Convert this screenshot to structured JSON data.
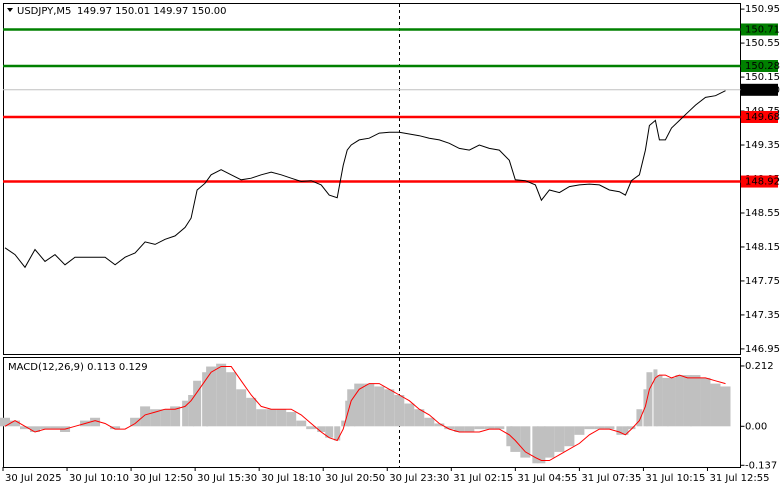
{
  "chart_data": [
    {
      "type": "line",
      "title": "USDJPY,M5",
      "subtitle": "149.97 150.01 149.97 150.00",
      "color": "#000000",
      "x": [
        1,
        6,
        11,
        16,
        21,
        26,
        31,
        36,
        41,
        46,
        51,
        56,
        61,
        66,
        71,
        76,
        81,
        86,
        91,
        94,
        97,
        101,
        104,
        109,
        114,
        119,
        124,
        129,
        134,
        139,
        144,
        149,
        154,
        159,
        163,
        167,
        170,
        172,
        174,
        178,
        183,
        188,
        193,
        198,
        203,
        208,
        213,
        218,
        223,
        228,
        233,
        238,
        243,
        248,
        253,
        256,
        261,
        266,
        269,
        273,
        278,
        283,
        288,
        293,
        298,
        303,
        308,
        311,
        314,
        318,
        321,
        323,
        326,
        328,
        331,
        334,
        338,
        342,
        346,
        351,
        356,
        361
      ],
      "values": [
        148.14,
        148.06,
        147.91,
        148.12,
        147.98,
        148.06,
        147.94,
        148.03,
        148.03,
        148.03,
        148.03,
        147.94,
        148.03,
        148.08,
        148.21,
        148.18,
        148.24,
        148.28,
        148.38,
        148.49,
        148.82,
        148.9,
        149.0,
        149.06,
        149.0,
        148.94,
        148.96,
        149.0,
        149.03,
        149.0,
        148.96,
        148.92,
        148.93,
        148.88,
        148.76,
        148.73,
        149.11,
        149.29,
        149.35,
        149.41,
        149.43,
        149.49,
        149.5,
        149.5,
        149.48,
        149.46,
        149.43,
        149.41,
        149.37,
        149.31,
        149.29,
        149.35,
        149.31,
        149.29,
        149.17,
        148.94,
        148.93,
        148.88,
        148.7,
        148.82,
        148.79,
        148.86,
        148.88,
        148.89,
        148.88,
        148.82,
        148.8,
        148.76,
        148.93,
        149.0,
        149.29,
        149.58,
        149.64,
        149.41,
        149.41,
        149.55,
        149.64,
        149.73,
        149.82,
        149.91,
        149.93,
        149.99
      ],
      "xlim": [
        0,
        368.5
      ],
      "ylim": [
        146.89,
        151.01
      ],
      "yticks": [
        150.95,
        150.55,
        150.15,
        149.75,
        149.35,
        148.95,
        148.55,
        148.15,
        147.75,
        147.35,
        146.95
      ],
      "levels": [
        {
          "value": 150.71,
          "color": "#008000"
        },
        {
          "value": 150.28,
          "color": "#008000"
        },
        {
          "value": 149.68,
          "color": "#ff0000"
        },
        {
          "value": 148.92,
          "color": "#ff0000"
        }
      ],
      "current_price": {
        "value": 150,
        "label": "150.00"
      }
    },
    {
      "type": "macd",
      "title": "MACD(12,26,9) 0.113 0.129",
      "x": [
        1,
        6,
        11,
        16,
        21,
        26,
        31,
        36,
        41,
        46,
        51,
        56,
        61,
        66,
        71,
        76,
        81,
        86,
        91,
        94,
        97,
        101,
        104,
        109,
        114,
        119,
        124,
        129,
        134,
        139,
        144,
        149,
        154,
        159,
        163,
        167,
        170,
        172,
        174,
        178,
        183,
        188,
        193,
        198,
        203,
        208,
        213,
        218,
        223,
        228,
        233,
        238,
        243,
        248,
        253,
        256,
        261,
        266,
        269,
        273,
        278,
        283,
        288,
        293,
        298,
        303,
        308,
        311,
        314,
        318,
        321,
        323,
        326,
        328,
        331,
        334,
        338,
        342,
        346,
        351,
        356,
        361
      ],
      "histogram": {
        "color": "#c0c0c0",
        "values": [
          0.03,
          0.02,
          -0.01,
          -0.02,
          -0.01,
          -0.01,
          -0.02,
          0.0,
          0.02,
          0.03,
          0.0,
          -0.01,
          0.0,
          0.03,
          0.07,
          0.06,
          0.06,
          0.07,
          0.09,
          0.11,
          0.16,
          0.19,
          0.21,
          0.22,
          0.19,
          0.13,
          0.1,
          0.06,
          0.06,
          0.06,
          0.05,
          0.02,
          -0.01,
          -0.02,
          -0.04,
          -0.05,
          0.02,
          0.09,
          0.13,
          0.15,
          0.15,
          0.14,
          0.13,
          0.11,
          0.08,
          0.06,
          0.03,
          0.01,
          -0.01,
          -0.02,
          -0.02,
          -0.01,
          -0.01,
          -0.01,
          -0.07,
          -0.09,
          -0.11,
          -0.13,
          -0.13,
          -0.11,
          -0.09,
          -0.07,
          -0.03,
          -0.01,
          -0.01,
          -0.01,
          -0.03,
          -0.03,
          -0.01,
          0.06,
          0.13,
          0.19,
          0.2,
          0.18,
          0.17,
          0.17,
          0.18,
          0.18,
          0.18,
          0.17,
          0.15,
          0.14
        ]
      },
      "signal": {
        "color": "#ff0000",
        "values": [
          0.0,
          0.02,
          0.0,
          -0.02,
          -0.01,
          -0.01,
          -0.01,
          0.0,
          0.01,
          0.02,
          0.01,
          -0.01,
          -0.01,
          0.01,
          0.04,
          0.05,
          0.06,
          0.06,
          0.07,
          0.09,
          0.12,
          0.16,
          0.19,
          0.21,
          0.21,
          0.16,
          0.11,
          0.07,
          0.06,
          0.06,
          0.06,
          0.04,
          0.01,
          -0.02,
          -0.04,
          -0.05,
          -0.01,
          0.04,
          0.09,
          0.13,
          0.15,
          0.15,
          0.13,
          0.11,
          0.09,
          0.06,
          0.04,
          0.01,
          -0.01,
          -0.02,
          -0.02,
          -0.02,
          -0.01,
          -0.01,
          -0.03,
          -0.05,
          -0.09,
          -0.11,
          -0.12,
          -0.12,
          -0.1,
          -0.08,
          -0.06,
          -0.03,
          -0.01,
          -0.01,
          -0.02,
          -0.03,
          -0.01,
          0.02,
          0.07,
          0.13,
          0.17,
          0.18,
          0.18,
          0.17,
          0.18,
          0.17,
          0.17,
          0.17,
          0.16,
          0.15
        ]
      },
      "xlim": [
        0,
        368.5
      ],
      "ylim": [
        -0.143,
        0.24
      ],
      "yticks": [
        0.212,
        {
          "value": 0,
          "label": "0.00"
        },
        -0.137
      ],
      "xticks": [
        {
          "value": 0,
          "label": "30 Jul 2025"
        },
        {
          "value": 32,
          "label": "30 Jul 10:10"
        },
        {
          "value": 64,
          "label": "30 Jul 12:50"
        },
        {
          "value": 96,
          "label": "30 Jul 15:30"
        },
        {
          "value": 128,
          "label": "30 Jul 18:10"
        },
        {
          "value": 160,
          "label": "30 Jul 20:50"
        },
        {
          "value": 192,
          "label": "30 Jul 23:30"
        },
        {
          "value": 224,
          "label": "31 Jul 02:15"
        },
        {
          "value": 256,
          "label": "31 Jul 04:55"
        },
        {
          "value": 288,
          "label": "31 Jul 07:35"
        },
        {
          "value": 320,
          "label": "31 Jul 10:15"
        },
        {
          "value": 352,
          "label": "31 Jul 12:55"
        }
      ]
    }
  ]
}
